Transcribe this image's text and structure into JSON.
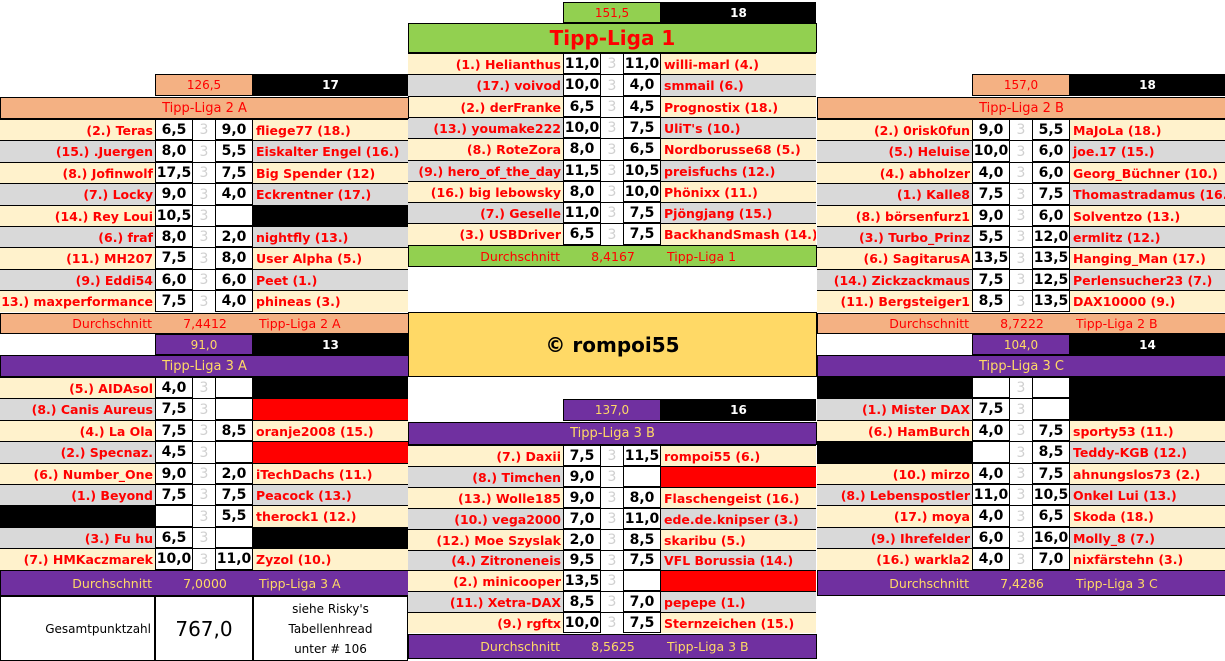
{
  "copyright": "© rompoi55",
  "total": {
    "label": "Gesamtpunktzahl",
    "value": "767,0",
    "note": [
      "siehe Risky's",
      "Tabellenhread",
      "unter # 106"
    ]
  },
  "colors": {
    "liga1": "#92d050",
    "liga2": "#f4b183",
    "liga3": "#7030a0",
    "liga3_text": "#ffd966",
    "name_text": "#ff0000",
    "row_light": "#fff2cc",
    "row_dark": "#d9d9d9",
    "missing_black": "#000000",
    "missing_red": "#ff0000"
  },
  "leagues": [
    {
      "id": "liga1",
      "title": "Tipp-Liga 1",
      "total": "151,5",
      "count": "18",
      "avg_label": "Durchschnitt",
      "avg": "8,4167",
      "rows": [
        [
          "(1.) Helianthus",
          "11,0",
          "11,0",
          "willi-marl (4.)"
        ],
        [
          "(17.) voivod",
          "10,0",
          "4,0",
          "smmail (6.)"
        ],
        [
          "(2.) derFranke",
          "6,5",
          "4,5",
          "Prognostix (18.)"
        ],
        [
          "(13.) youmake222",
          "10,0",
          "7,5",
          "UliT's (10.)"
        ],
        [
          "(8.) RoteZora",
          "8,0",
          "6,5",
          "Nordborusse68 (5.)"
        ],
        [
          "(9.) hero_of_the_day",
          "11,5",
          "10,5",
          "preisfuchs (12.)"
        ],
        [
          "(16.) big lebowsky",
          "8,0",
          "10,0",
          "Phönixx (11.)"
        ],
        [
          "(7.) Geselle",
          "11,0",
          "7,5",
          "Pjöngjang (15.)"
        ],
        [
          "(3.) USBDriver",
          "6,5",
          "7,5",
          "BackhandSmash (14.)"
        ]
      ]
    },
    {
      "id": "liga2a",
      "title": "Tipp-Liga 2 A",
      "total": "126,5",
      "count": "17",
      "avg_label": "Durchschnitt",
      "avg": "7,4412",
      "rows": [
        [
          "(2.) Teras",
          "6,5",
          "9,0",
          "fliege77 (18.)"
        ],
        [
          "(15.) .Juergen",
          "8,0",
          "5,5",
          "Eiskalter Engel (16.)"
        ],
        [
          "(8.) Jofinwolf",
          "17,5",
          "7,5",
          "Big Spender (12)"
        ],
        [
          "(7.) Locky",
          "9,0",
          "4,0",
          "Eckrentner (17.)"
        ],
        [
          "(14.) Rey Loui",
          "10,5",
          "",
          "",
          "",
          "black"
        ],
        [
          "(6.) fraf",
          "8,0",
          "2,0",
          "nightfly (13.)"
        ],
        [
          "(11.) MH207",
          "7,5",
          "8,0",
          "User Alpha (5.)"
        ],
        [
          "(9.) Eddi54",
          "6,0",
          "6,0",
          "Peet (1.)"
        ],
        [
          "(13.) maxperformance",
          "7,5",
          "4,0",
          "phineas (3.)"
        ]
      ]
    },
    {
      "id": "liga2b",
      "title": "Tipp-Liga 2 B",
      "total": "157,0",
      "count": "18",
      "avg_label": "Durchschnitt",
      "avg": "8,7222",
      "rows": [
        [
          "(2.) 0risk0fun",
          "9,0",
          "5,5",
          "MaJoLa (18.)"
        ],
        [
          "(5.) Heluise",
          "10,0",
          "6,0",
          "joe.17 (15.)"
        ],
        [
          "(4.) abholzer",
          "4,0",
          "6,0",
          "Georg_Büchner (10.)"
        ],
        [
          "(1.) Kalle8",
          "7,5",
          "7,5",
          "Thomastradamus (16.)"
        ],
        [
          "(8.) börsenfurz1",
          "9,0",
          "6,0",
          "Solventzo (13.)"
        ],
        [
          "(3.) Turbo_Prinz",
          "5,5",
          "12,0",
          "ermlitz (12.)"
        ],
        [
          "(6.) SagitarusA",
          "13,5",
          "13,5",
          "Hanging_Man (17.)"
        ],
        [
          "(14.) Zickzackmaus",
          "7,5",
          "12,5",
          "Perlensucher23  (7.)"
        ],
        [
          "(11.) Bergsteiger1",
          "8,5",
          "13,5",
          "DAX10000 (9.)"
        ]
      ]
    },
    {
      "id": "liga3a",
      "title": "Tipp-Liga 3 A",
      "total": "91,0",
      "count": "13",
      "avg_label": "Durchschnitt",
      "avg": "7,0000",
      "rows": [
        [
          "(5.) AIDAsol",
          "4,0",
          "",
          "",
          "",
          "black"
        ],
        [
          "(8.) Canis Aureus",
          "7,5",
          "",
          "",
          "",
          "red"
        ],
        [
          "(4.) La Ola",
          "7,5",
          "8,5",
          "oranje2008 (15.)"
        ],
        [
          "(2.) Specnaz.",
          "4,5",
          "",
          "",
          "",
          "red"
        ],
        [
          "(6.) Number_One",
          "9,0",
          "2,0",
          "iTechDachs (11.)"
        ],
        [
          "(1.) Beyond",
          "7,5",
          "7,5",
          "Peacock (13.)"
        ],
        [
          "",
          "",
          "5,5",
          "therock1 (12.)",
          "black",
          ""
        ],
        [
          "(3.) Fu hu",
          "6,5",
          "",
          "",
          "",
          "black"
        ],
        [
          "(7.) HMKaczmarek",
          "10,0",
          "11,0",
          "Zyzol (10.)"
        ]
      ]
    },
    {
      "id": "liga3b",
      "title": "Tipp-Liga 3 B",
      "total": "137,0",
      "count": "16",
      "avg_label": "Durchschnitt",
      "avg": "8,5625",
      "rows": [
        [
          "(7.) Daxii",
          "7,5",
          "11,5",
          "rompoi55 (6.)"
        ],
        [
          "(8.) Timchen",
          "9,0",
          "",
          "",
          "",
          "red"
        ],
        [
          "(13.) Wolle185",
          "9,0",
          "8,0",
          "Flaschengeist (16.)"
        ],
        [
          "(10.) vega2000",
          "7,0",
          "11,0",
          "ede.de.knipser (3.)"
        ],
        [
          "(12.) Moe Szyslak",
          "2,0",
          "8,5",
          "skaribu (5.)"
        ],
        [
          "(4.) Zitroneneis",
          "9,5",
          "7,5",
          "VFL Borussia (14.)"
        ],
        [
          "(2.) minicooper",
          "13,5",
          "",
          "",
          "",
          "red"
        ],
        [
          "(11.) Xetra-DAX",
          "8,5",
          "7,0",
          "pepepe (1.)"
        ],
        [
          "(9.) rgftx",
          "10,0",
          "7,5",
          "Sternzeichen (15.)"
        ]
      ]
    },
    {
      "id": "liga3c",
      "title": "Tipp-Liga 3 C",
      "total": "104,0",
      "count": "14",
      "avg_label": "Durchschnitt",
      "avg": "7,4286",
      "rows": [
        [
          "",
          "",
          "",
          "",
          "black",
          "black"
        ],
        [
          "(1.) Mister DAX",
          "7,5",
          "",
          "",
          "",
          "black"
        ],
        [
          "(6.) HamBurch",
          "4,0",
          "7,5",
          "sporty53 (11.)"
        ],
        [
          "",
          "",
          "8,5",
          "Teddy-KGB (12.)",
          "black",
          ""
        ],
        [
          "(10.) mirzo",
          "4,0",
          "7,5",
          "ahnungslos73 (2.)"
        ],
        [
          "(8.) Lebenspostler",
          "11,0",
          "10,5",
          "Onkel Lui (13.)"
        ],
        [
          "(17.) moya",
          "4,0",
          "6,5",
          "Skoda (18.)"
        ],
        [
          "(9.)  Ihrefelder",
          "6,0",
          "16,0",
          "Molly_8 (7.)"
        ],
        [
          "(16.) warkla2",
          "4,0",
          "7,0",
          "nixfärstehn (3.)"
        ]
      ]
    }
  ],
  "separator": "3"
}
